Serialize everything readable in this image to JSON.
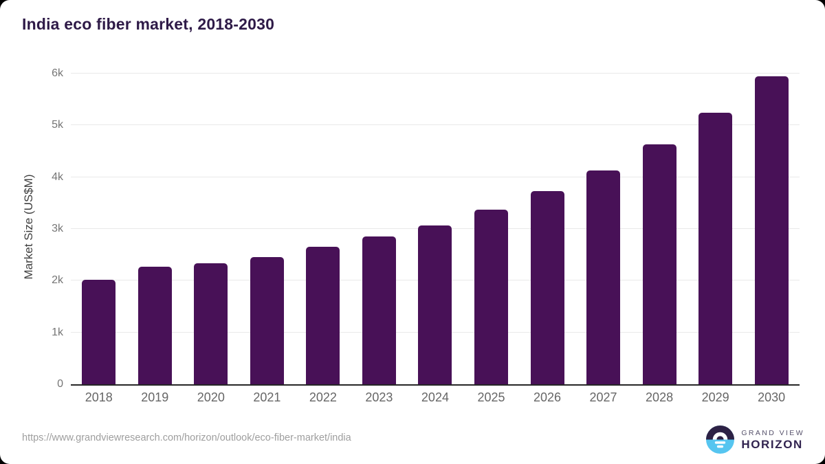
{
  "page": {
    "background": "#ffffff",
    "outer_background": "#000000"
  },
  "chart_data": {
    "type": "bar",
    "title": "India eco fiber market, 2018-2030",
    "xlabel": "",
    "ylabel": "Market Size (US$M)",
    "ylim": [
      0,
      6000
    ],
    "grid": true,
    "legend": false,
    "bar_color": "#481157",
    "categories": [
      "2018",
      "2019",
      "2020",
      "2021",
      "2022",
      "2023",
      "2024",
      "2025",
      "2026",
      "2027",
      "2028",
      "2029",
      "2030"
    ],
    "values": [
      2020,
      2270,
      2340,
      2460,
      2650,
      2850,
      3070,
      3370,
      3730,
      4130,
      4630,
      5240,
      5950
    ],
    "yticks": [
      {
        "label": "0",
        "value": 0
      },
      {
        "label": "1k",
        "value": 1000
      },
      {
        "label": "2k",
        "value": 2000
      },
      {
        "label": "3k",
        "value": 3000
      },
      {
        "label": "4k",
        "value": 4000
      },
      {
        "label": "5k",
        "value": 5000
      },
      {
        "label": "6k",
        "value": 6000
      }
    ]
  },
  "footer": {
    "source_url": "https://www.grandviewresearch.com/horizon/outlook/eco-fiber-market/india",
    "logo": {
      "line1": "GRAND VIEW",
      "line2": "HORIZON",
      "icon_dark_color": "#2d2145",
      "icon_blue_color": "#56c5f0"
    }
  }
}
